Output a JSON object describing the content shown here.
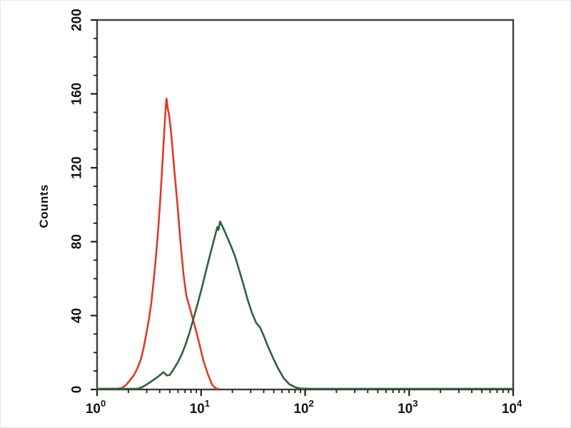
{
  "figure": {
    "background": "#ffffff",
    "border_color": "#e3e7ec",
    "axis_color": "#3d3d3d",
    "tick_color": "#1c1c1c"
  },
  "chart_data": {
    "type": "line",
    "subtype": "flow_cytometry_histogram",
    "title": "",
    "xlabel": "",
    "ylabel": "Counts",
    "x_scale": "log10",
    "x_range": [
      1,
      10000
    ],
    "y_range": [
      0,
      200
    ],
    "grid": false,
    "legend": "none",
    "x_major_ticks": [
      {
        "base": "10",
        "exp": "0",
        "value": 1
      },
      {
        "base": "10",
        "exp": "1",
        "value": 10
      },
      {
        "base": "10",
        "exp": "2",
        "value": 100
      },
      {
        "base": "10",
        "exp": "3",
        "value": 1000
      },
      {
        "base": "10",
        "exp": "4",
        "value": 10000
      }
    ],
    "x_minor_multiples": [
      2,
      3,
      4,
      5,
      6,
      7,
      8,
      9
    ],
    "y_major_ticks": [
      0,
      40,
      80,
      120,
      160,
      200
    ],
    "y_minor_step": 10,
    "series": [
      {
        "name": "red-control-peak",
        "color": "#e1392a",
        "peak": {
          "x": 4.6,
          "counts": 157
        },
        "points": [
          [
            1.0,
            0
          ],
          [
            1.6,
            0
          ],
          [
            1.74,
            0.5
          ],
          [
            1.9,
            2
          ],
          [
            2.03,
            4
          ],
          [
            2.24,
            7
          ],
          [
            2.42,
            10.5
          ],
          [
            2.62,
            15.5
          ],
          [
            2.79,
            21.5
          ],
          [
            2.97,
            29.5
          ],
          [
            3.16,
            38
          ],
          [
            3.32,
            46.5
          ],
          [
            3.48,
            57
          ],
          [
            3.64,
            68.5
          ],
          [
            3.83,
            83
          ],
          [
            4.01,
            98.5
          ],
          [
            4.21,
            118
          ],
          [
            4.42,
            139
          ],
          [
            4.59,
            154
          ],
          [
            4.66,
            157
          ],
          [
            4.8,
            151
          ],
          [
            4.93,
            148
          ],
          [
            5.1,
            141
          ],
          [
            5.25,
            133
          ],
          [
            5.58,
            116
          ],
          [
            5.95,
            98.5
          ],
          [
            6.34,
            79
          ],
          [
            6.77,
            62
          ],
          [
            7.2,
            50.5
          ],
          [
            7.9,
            42.5
          ],
          [
            8.7,
            34
          ],
          [
            9.6,
            24.5
          ],
          [
            10.5,
            15.5
          ],
          [
            11.6,
            8
          ],
          [
            12.8,
            2
          ],
          [
            14.0,
            0
          ],
          [
            14.6,
            0
          ]
        ]
      },
      {
        "name": "green-stained-peak",
        "color": "#2d6239",
        "peak": {
          "x": 15,
          "counts": 91
        },
        "points": [
          [
            1.0,
            0
          ],
          [
            2.45,
            0
          ],
          [
            2.7,
            0.8
          ],
          [
            3.0,
            2.3
          ],
          [
            3.3,
            3.9
          ],
          [
            3.7,
            5.8
          ],
          [
            4.0,
            7.3
          ],
          [
            4.35,
            9.0
          ],
          [
            4.7,
            7.2
          ],
          [
            5.0,
            7.5
          ],
          [
            5.5,
            11
          ],
          [
            6.0,
            14.5
          ],
          [
            6.5,
            18.5
          ],
          [
            7.1,
            24
          ],
          [
            7.7,
            30
          ],
          [
            8.4,
            37.5
          ],
          [
            9.2,
            45.5
          ],
          [
            10.1,
            54
          ],
          [
            11.0,
            62.5
          ],
          [
            12.0,
            71
          ],
          [
            13.0,
            78.5
          ],
          [
            13.8,
            84
          ],
          [
            14.3,
            87.5
          ],
          [
            14.7,
            86
          ],
          [
            15.2,
            90.5
          ],
          [
            16.0,
            88
          ],
          [
            17.0,
            84.8
          ],
          [
            18.2,
            80.8
          ],
          [
            19.6,
            76.6
          ],
          [
            21.3,
            71.3
          ],
          [
            23.3,
            64
          ],
          [
            25.5,
            56.4
          ],
          [
            28.0,
            48.3
          ],
          [
            30.9,
            40.9
          ],
          [
            33.9,
            35.6
          ],
          [
            36.7,
            33.4
          ],
          [
            39.7,
            29.2
          ],
          [
            43.6,
            23.3
          ],
          [
            48.6,
            17.3
          ],
          [
            54.6,
            11.3
          ],
          [
            62,
            5.9
          ],
          [
            70,
            2.6
          ],
          [
            80,
            0.9
          ],
          [
            91,
            0.1
          ],
          [
            120,
            0
          ],
          [
            1000,
            0
          ],
          [
            10000,
            0
          ]
        ]
      }
    ]
  }
}
